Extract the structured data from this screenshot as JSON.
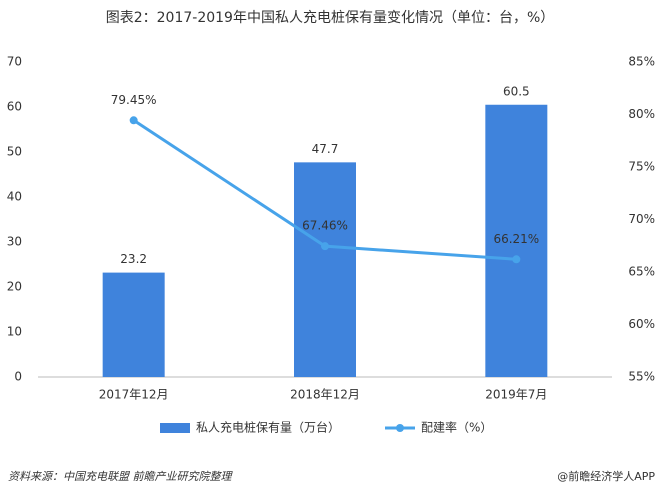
{
  "chart_data": {
    "type": "bar",
    "title": "图表2：2017-2019年中国私人充电桩保有量变化情况（单位：台，%）",
    "categories": [
      "2017年12月",
      "2018年12月",
      "2019年7月"
    ],
    "series": [
      {
        "name": "私人充电桩保有量（万台）",
        "type": "bar",
        "color": "#3f83dc",
        "values": [
          23.2,
          47.7,
          60.5
        ]
      },
      {
        "name": "配建率（%）",
        "type": "line",
        "axis": "y2",
        "color": "#47a3ea",
        "values": [
          79.45,
          67.46,
          66.21
        ],
        "value_labels": [
          "79.45%",
          "67.46%",
          "66.21%"
        ]
      }
    ],
    "ylim": [
      0,
      70
    ],
    "yticks": [
      0,
      10,
      20,
      30,
      40,
      50,
      60,
      70
    ],
    "y2lim": [
      55,
      85
    ],
    "y2ticks": [
      {
        "value": 55,
        "label": "55%"
      },
      {
        "value": 60,
        "label": "60%"
      },
      {
        "value": 65,
        "label": "65%"
      },
      {
        "value": 70,
        "label": "70%"
      },
      {
        "value": 75,
        "label": "75%"
      },
      {
        "value": 80,
        "label": "80%"
      },
      {
        "value": 85,
        "label": "85%"
      }
    ],
    "legend": "bottom",
    "source": "资料来源：中国充电联盟 前瞻产业研究院整理",
    "credit": "@前瞻经济学人APP"
  }
}
